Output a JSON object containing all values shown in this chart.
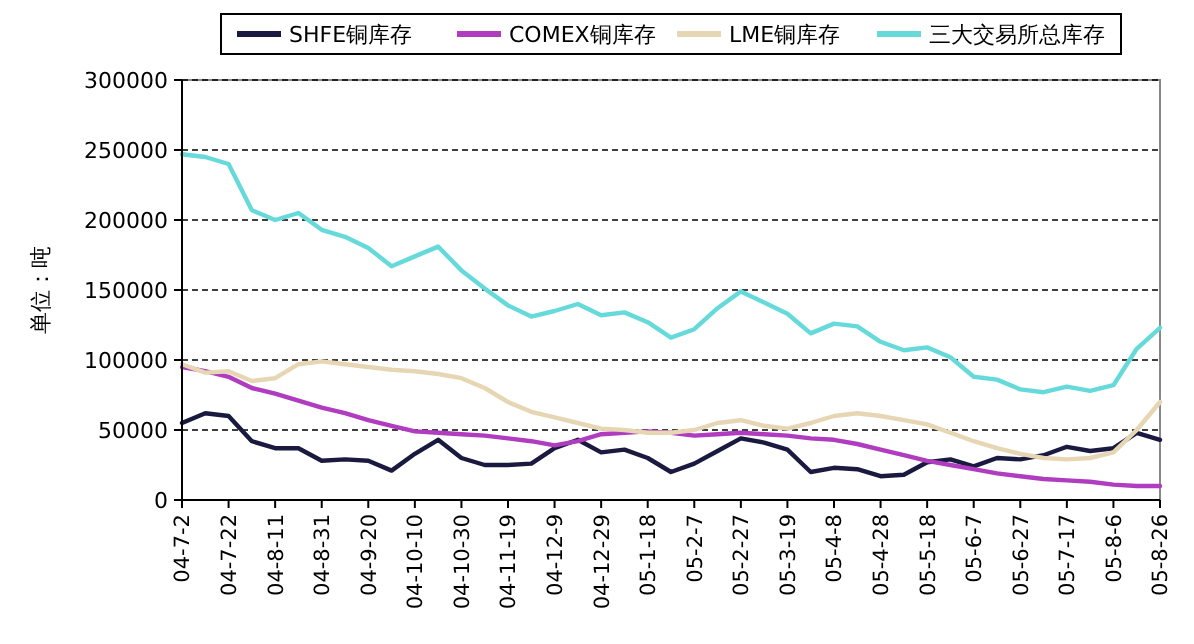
{
  "chart_data": {
    "type": "line",
    "ylabel": "单位：吨",
    "grid": "y",
    "legend": "top",
    "marker": "none",
    "line_style": "solid",
    "categories": [
      "04-7-2",
      null,
      "04-7-22",
      null,
      "04-8-11",
      null,
      "04-8-31",
      null,
      "04-9-20",
      null,
      "04-10-10",
      null,
      "04-10-30",
      null,
      "04-11-19",
      null,
      "04-12-9",
      null,
      "04-12-29",
      null,
      "05-1-18",
      null,
      "05-2-7",
      null,
      "05-2-27",
      null,
      "05-3-19",
      null,
      "05-4-8",
      null,
      "05-4-28",
      null,
      "05-5-18",
      null,
      "05-6-7",
      null,
      "05-6-27",
      null,
      "05-7-17",
      null,
      "05-8-6",
      null,
      "05-8-26"
    ],
    "ylim": [
      0,
      300000
    ],
    "yticks": [
      0,
      50000,
      100000,
      150000,
      200000,
      250000,
      300000
    ],
    "series": [
      {
        "name": "SHFE铜库存",
        "color": "#1a1a40",
        "values": [
          55000,
          62000,
          60000,
          42000,
          37000,
          37000,
          28000,
          29000,
          28000,
          21000,
          33000,
          43000,
          30000,
          25000,
          25000,
          26000,
          37000,
          43000,
          34000,
          36000,
          30000,
          20000,
          26000,
          35000,
          44000,
          41000,
          36000,
          20000,
          23000,
          22000,
          17000,
          18000,
          27000,
          29000,
          24000,
          30000,
          29000,
          32000,
          38000,
          35000,
          37000,
          48000,
          43000
        ]
      },
      {
        "name": "COMEX铜库存",
        "color": "#b03cc0",
        "values": [
          95000,
          92000,
          88000,
          80000,
          76000,
          71000,
          66000,
          62000,
          57000,
          53000,
          49000,
          48000,
          47000,
          46000,
          44000,
          42000,
          39000,
          42000,
          47000,
          48000,
          49000,
          48000,
          46000,
          47000,
          48000,
          47000,
          46000,
          44000,
          43000,
          40000,
          36000,
          32000,
          28000,
          25000,
          22000,
          19000,
          17000,
          15000,
          14000,
          13000,
          11000,
          10000,
          10000
        ]
      },
      {
        "name": "LME铜库存",
        "color": "#e6d6b4",
        "values": [
          97000,
          91000,
          92000,
          85000,
          87000,
          97000,
          99000,
          97000,
          95000,
          93000,
          92000,
          90000,
          87000,
          80000,
          70000,
          63000,
          59000,
          55000,
          51000,
          50000,
          48000,
          48000,
          50000,
          55000,
          57000,
          53000,
          51000,
          55000,
          60000,
          62000,
          60000,
          57000,
          54000,
          48000,
          42000,
          37000,
          33000,
          30000,
          29000,
          30000,
          34000,
          50000,
          70000
        ]
      },
      {
        "name": "三大交易所总库存",
        "color": "#66dada",
        "values": [
          247000,
          245000,
          240000,
          207000,
          200000,
          205000,
          193000,
          188000,
          180000,
          167000,
          174000,
          181000,
          164000,
          151000,
          139000,
          131000,
          135000,
          140000,
          132000,
          134000,
          127000,
          116000,
          122000,
          137000,
          149000,
          141000,
          133000,
          119000,
          126000,
          124000,
          113000,
          107000,
          109000,
          102000,
          88000,
          86000,
          79000,
          77000,
          81000,
          78000,
          82000,
          108000,
          123000
        ]
      }
    ]
  }
}
